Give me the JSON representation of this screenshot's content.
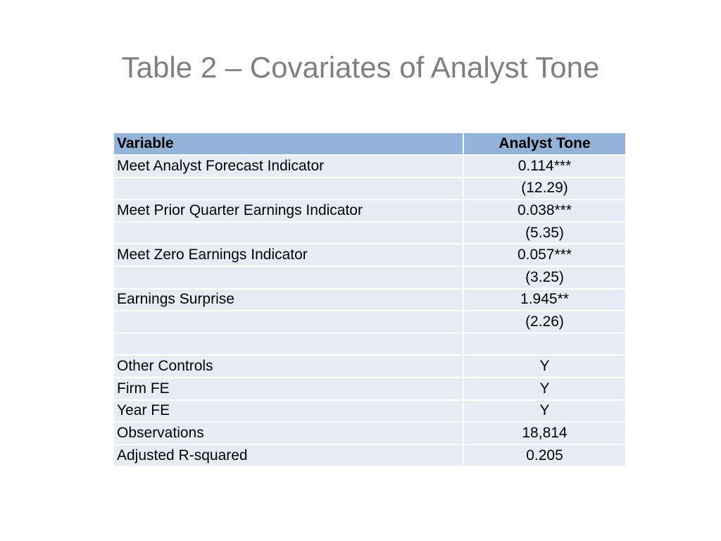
{
  "slide": {
    "title": "Table 2 – Covariates of Analyst Tone"
  },
  "table": {
    "headers": [
      "Variable",
      "Analyst Tone"
    ],
    "rows": [
      {
        "variable": "Meet Analyst Forecast Indicator",
        "value": "0.114***"
      },
      {
        "variable": "",
        "value": "(12.29)"
      },
      {
        "variable": "Meet Prior Quarter Earnings Indicator",
        "value": "0.038***"
      },
      {
        "variable": "",
        "value": "(5.35)"
      },
      {
        "variable": "Meet Zero Earnings Indicator",
        "value": "0.057***"
      },
      {
        "variable": "",
        "value": "(3.25)"
      },
      {
        "variable": "Earnings Surprise",
        "value": "1.945**"
      },
      {
        "variable": "",
        "value": "(2.26)"
      },
      {
        "variable": "",
        "value": ""
      },
      {
        "variable": "Other Controls",
        "value": "Y"
      },
      {
        "variable": "Firm FE",
        "value": "Y"
      },
      {
        "variable": "Year FE",
        "value": "Y"
      },
      {
        "variable": "Observations",
        "value": "18,814"
      },
      {
        "variable": "Adjusted R-squared",
        "value": "0.205"
      }
    ]
  },
  "colors": {
    "header_fill": "#94b3d8",
    "row_fill": "#e9ebf5",
    "title_text": "#7f7f7f"
  }
}
